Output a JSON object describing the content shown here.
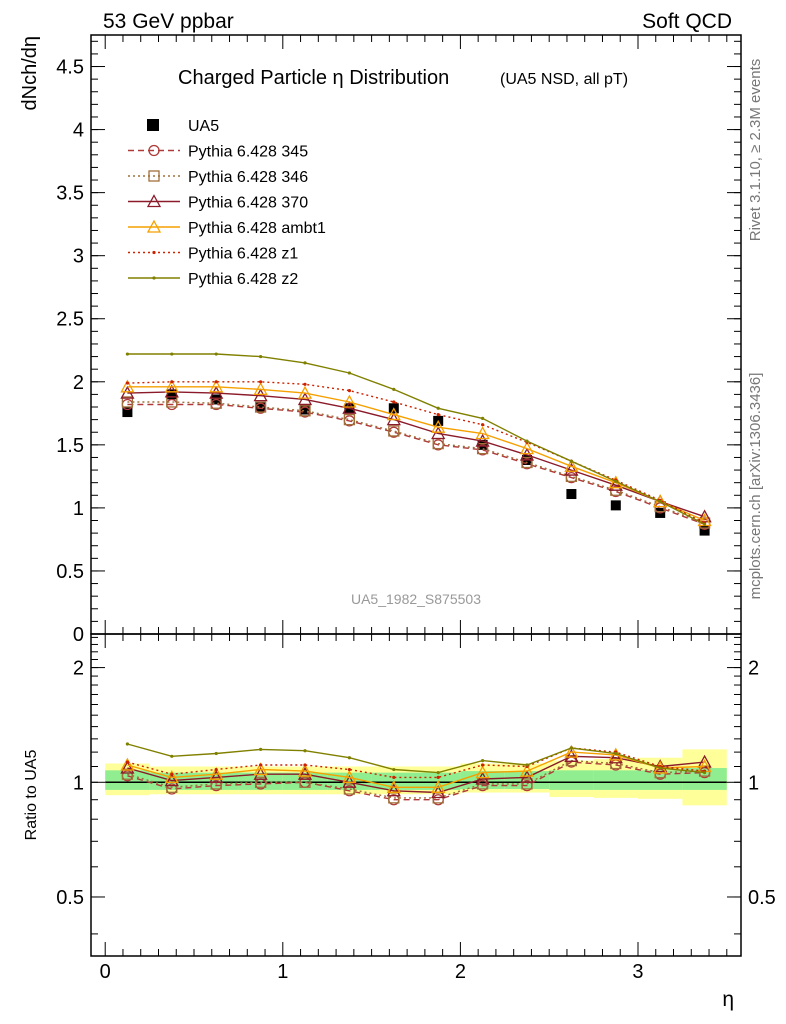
{
  "header": {
    "left": "53 GeV ppbar",
    "right": "Soft QCD"
  },
  "side_labels": {
    "rivet": "Rivet 3.1.10, ≥ 2.3M events",
    "mcplots": "mcplots.cern.ch [arXiv:1306.3436]"
  },
  "watermark": "UA5_1982_S875503",
  "chart_data": [
    {
      "type": "line",
      "title": "Charged Particle η Distribution",
      "subtitle": "(UA5 NSD, all pT)",
      "ylabel": "dNch/dη",
      "xlim": [
        -0.08,
        3.58
      ],
      "ylim": [
        0,
        4.75
      ],
      "y_ticks": [
        "0",
        "0.5",
        "1",
        "1.5",
        "2",
        "2.5",
        "3",
        "3.5",
        "4",
        "4.5"
      ],
      "x": [
        0.125,
        0.375,
        0.625,
        0.875,
        1.125,
        1.375,
        1.625,
        1.875,
        2.125,
        2.375,
        2.625,
        2.875,
        3.125,
        3.375
      ],
      "legend_position": "top-left",
      "series": [
        {
          "name": "UA5",
          "style": "data",
          "color": "#000000",
          "values": [
            1.76,
            1.9,
            1.86,
            1.8,
            1.78,
            1.79,
            1.79,
            1.69,
            1.5,
            1.38,
            1.11,
            1.02,
            0.96,
            0.82
          ]
        },
        {
          "name": "Pythia 6.428 345",
          "style": "dash",
          "marker": "circle",
          "color": "#b03a3a",
          "values": [
            1.82,
            1.82,
            1.82,
            1.79,
            1.76,
            1.69,
            1.6,
            1.5,
            1.46,
            1.35,
            1.24,
            1.13,
            1.0,
            0.87
          ]
        },
        {
          "name": "Pythia 6.428 346",
          "style": "dot",
          "marker": "square",
          "color": "#a0703a",
          "values": [
            1.84,
            1.84,
            1.83,
            1.8,
            1.77,
            1.7,
            1.61,
            1.51,
            1.47,
            1.36,
            1.25,
            1.14,
            1.01,
            0.88
          ]
        },
        {
          "name": "Pythia 6.428 370",
          "style": "solid",
          "marker": "triangle",
          "color": "#8b1a2a",
          "values": [
            1.91,
            1.92,
            1.91,
            1.89,
            1.86,
            1.79,
            1.7,
            1.59,
            1.53,
            1.42,
            1.3,
            1.18,
            1.05,
            0.93
          ]
        },
        {
          "name": "Pythia 6.428 ambt1",
          "style": "solid",
          "marker": "triangle",
          "color": "#f5a000",
          "values": [
            1.96,
            1.96,
            1.96,
            1.94,
            1.91,
            1.84,
            1.74,
            1.64,
            1.59,
            1.47,
            1.33,
            1.2,
            1.05,
            0.9
          ]
        },
        {
          "name": "Pythia 6.428 z1",
          "style": "dot",
          "marker": "dot",
          "color": "#cc2200",
          "values": [
            1.99,
            2.0,
            2.0,
            2.0,
            1.98,
            1.93,
            1.84,
            1.74,
            1.66,
            1.52,
            1.37,
            1.22,
            1.06,
            0.88
          ]
        },
        {
          "name": "Pythia 6.428 z2",
          "style": "solid",
          "marker": "dot",
          "color": "#808000",
          "values": [
            2.22,
            2.22,
            2.22,
            2.2,
            2.15,
            2.07,
            1.94,
            1.79,
            1.71,
            1.53,
            1.37,
            1.21,
            1.05,
            0.87
          ]
        }
      ]
    },
    {
      "type": "line",
      "ylabel": "Ratio to UA5",
      "xlabel": "η",
      "xlim": [
        -0.08,
        3.58
      ],
      "ylim": [
        0.35,
        2.45
      ],
      "log_y": true,
      "x_ticks": [
        "0",
        "1",
        "2",
        "3"
      ],
      "y_ticks": [
        "0.5",
        "1",
        "2"
      ],
      "x_edges": [
        0.0,
        0.25,
        0.5,
        0.75,
        1.0,
        1.25,
        1.5,
        1.75,
        2.0,
        2.25,
        2.5,
        2.75,
        3.0,
        3.25,
        3.5
      ],
      "band_green": [
        [
          0.955,
          1.075
        ],
        [
          0.955,
          1.06
        ],
        [
          0.955,
          1.06
        ],
        [
          0.955,
          1.06
        ],
        [
          0.955,
          1.06
        ],
        [
          0.955,
          1.06
        ],
        [
          0.955,
          1.06
        ],
        [
          0.955,
          1.06
        ],
        [
          0.96,
          1.07
        ],
        [
          0.96,
          1.07
        ],
        [
          0.955,
          1.075
        ],
        [
          0.955,
          1.075
        ],
        [
          0.955,
          1.075
        ],
        [
          0.955,
          1.09
        ]
      ],
      "band_yellow": [
        [
          0.925,
          1.12
        ],
        [
          0.93,
          1.1
        ],
        [
          0.93,
          1.1
        ],
        [
          0.93,
          1.1
        ],
        [
          0.93,
          1.1
        ],
        [
          0.93,
          1.1
        ],
        [
          0.93,
          1.1
        ],
        [
          0.93,
          1.1
        ],
        [
          0.94,
          1.12
        ],
        [
          0.94,
          1.12
        ],
        [
          0.915,
          1.14
        ],
        [
          0.91,
          1.15
        ],
        [
          0.905,
          1.16
        ],
        [
          0.87,
          1.22
        ]
      ],
      "series": [
        {
          "name": "Pythia 6.428 345",
          "style": "dash",
          "marker": "circle",
          "color": "#b03a3a",
          "values": [
            1.04,
            0.96,
            0.98,
            0.99,
            1.0,
            0.95,
            0.9,
            0.9,
            0.98,
            0.98,
            1.13,
            1.11,
            1.05,
            1.06
          ]
        },
        {
          "name": "Pythia 6.428 346",
          "style": "dot",
          "marker": "square",
          "color": "#a0703a",
          "values": [
            1.05,
            0.97,
            0.99,
            1.0,
            1.0,
            0.96,
            0.91,
            0.91,
            0.99,
            0.99,
            1.14,
            1.12,
            1.06,
            1.07
          ]
        },
        {
          "name": "Pythia 6.428 370",
          "style": "solid",
          "marker": "triangle",
          "color": "#8b1a2a",
          "values": [
            1.09,
            1.01,
            1.03,
            1.05,
            1.05,
            1.0,
            0.95,
            0.94,
            1.02,
            1.03,
            1.17,
            1.16,
            1.1,
            1.13
          ]
        },
        {
          "name": "Pythia 6.428 ambt1",
          "style": "solid",
          "marker": "triangle",
          "color": "#f5a000",
          "values": [
            1.11,
            1.03,
            1.05,
            1.08,
            1.07,
            1.03,
            0.97,
            0.97,
            1.06,
            1.07,
            1.2,
            1.18,
            1.09,
            1.1
          ]
        },
        {
          "name": "Pythia 6.428 z1",
          "style": "dot",
          "marker": "dot",
          "color": "#cc2200",
          "values": [
            1.13,
            1.05,
            1.08,
            1.11,
            1.11,
            1.08,
            1.03,
            1.03,
            1.11,
            1.1,
            1.23,
            1.2,
            1.1,
            1.07
          ]
        },
        {
          "name": "Pythia 6.428 z2",
          "style": "solid",
          "marker": "dot",
          "color": "#808000",
          "values": [
            1.26,
            1.17,
            1.19,
            1.22,
            1.21,
            1.16,
            1.08,
            1.06,
            1.14,
            1.11,
            1.23,
            1.19,
            1.09,
            1.06
          ]
        }
      ]
    }
  ]
}
